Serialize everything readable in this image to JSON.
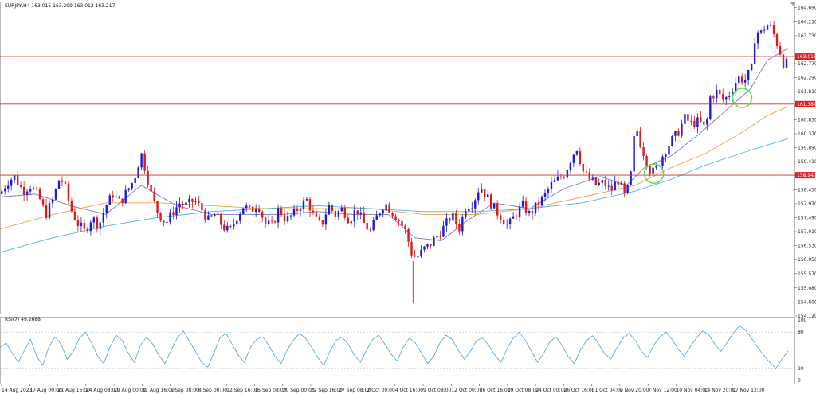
{
  "header": {
    "symbol_info": "EURJPY,H4  163.015 163.299 163.012 163.217"
  },
  "colors": {
    "bull": "#1b1bd8",
    "bear": "#e01818",
    "ma_fast": "#7a7ab8",
    "ma_mid": "#f0a040",
    "ma_slow": "#4ab4e6",
    "hline": "#e02020",
    "rsi_line": "#4a9ee0",
    "circle": "#66dd55"
  },
  "chart_data": [
    {
      "type": "candlestick",
      "title": "EURJPY,H4",
      "ylim": [
        154.2,
        164.9
      ],
      "y_ticks": [
        "164.690",
        "164.210",
        "163.730",
        "162.770",
        "162.290",
        "161.810",
        "161.330",
        "160.850",
        "160.370",
        "159.890",
        "159.410",
        "158.930",
        "158.450",
        "157.970",
        "157.490",
        "157.010",
        "156.530",
        "156.050",
        "155.570",
        "155.080",
        "154.600",
        "154.120"
      ],
      "x_ticks": [
        "14 Aug 2023",
        "17 Aug 00:00",
        "21 Aug 16:00",
        "24 Aug 08:00",
        "29 Aug 00:00",
        "31 Aug 16:00",
        "5 Sep 08:00",
        "8 Sep 00:00",
        "12 Sep 16:00",
        "15 Sep 08:00",
        "20 Sep 00:00",
        "22 Sep 16:00",
        "27 Sep 08:00",
        "2 Oct 00:00",
        "4 Oct 16:00",
        "9 Oct 08:00",
        "12 Oct 00:00",
        "16 Oct 16:00",
        "19 Oct 08:00",
        "24 Oct 00:00",
        "26 Oct 16:00",
        "31 Oct 04:00",
        "2 Nov 20:00",
        "7 Nov 12:00",
        "10 Nov 04:00",
        "14 Nov 20:00",
        "17 Nov 12:00"
      ],
      "close_path": [
        [
          0,
          158.3
        ],
        [
          8,
          158.7
        ],
        [
          16,
          158.9
        ],
        [
          26,
          158.4
        ],
        [
          34,
          158.6
        ],
        [
          44,
          158.2
        ],
        [
          52,
          157.6
        ],
        [
          60,
          158.1
        ],
        [
          68,
          158.9
        ],
        [
          74,
          158.5
        ],
        [
          80,
          157.8
        ],
        [
          88,
          157.3
        ],
        [
          96,
          157.0
        ],
        [
          104,
          157.5
        ],
        [
          112,
          157.2
        ],
        [
          120,
          157.9
        ],
        [
          128,
          158.3
        ],
        [
          136,
          158.0
        ],
        [
          144,
          158.4
        ],
        [
          152,
          158.8
        ],
        [
          160,
          159.7
        ],
        [
          166,
          159.0
        ],
        [
          172,
          158.2
        ],
        [
          180,
          157.6
        ],
        [
          188,
          157.3
        ],
        [
          196,
          157.7
        ],
        [
          204,
          158.0
        ],
        [
          212,
          157.9
        ],
        [
          220,
          158.1
        ],
        [
          228,
          157.8
        ],
        [
          236,
          157.4
        ],
        [
          244,
          157.6
        ],
        [
          252,
          157.2
        ],
        [
          260,
          157.0
        ],
        [
          268,
          157.5
        ],
        [
          276,
          157.9
        ],
        [
          284,
          157.7
        ],
        [
          292,
          158.0
        ],
        [
          300,
          157.3
        ],
        [
          308,
          157.2
        ],
        [
          316,
          157.8
        ],
        [
          324,
          157.4
        ],
        [
          332,
          157.6
        ],
        [
          340,
          157.9
        ],
        [
          348,
          158.1
        ],
        [
          356,
          157.5
        ],
        [
          364,
          157.2
        ],
        [
          372,
          157.9
        ],
        [
          380,
          157.6
        ],
        [
          388,
          157.8
        ],
        [
          396,
          157.4
        ],
        [
          404,
          157.8
        ],
        [
          412,
          157.3
        ],
        [
          420,
          157.0
        ],
        [
          428,
          157.6
        ],
        [
          436,
          158.0
        ],
        [
          444,
          157.7
        ],
        [
          452,
          157.4
        ],
        [
          460,
          157.0
        ],
        [
          466,
          156.3
        ],
        [
          472,
          156.1
        ],
        [
          480,
          156.4
        ],
        [
          488,
          156.6
        ],
        [
          496,
          156.9
        ],
        [
          504,
          157.2
        ],
        [
          512,
          157.6
        ],
        [
          520,
          157.1
        ],
        [
          528,
          157.9
        ],
        [
          536,
          158.0
        ],
        [
          544,
          158.6
        ],
        [
          552,
          158.2
        ],
        [
          560,
          157.8
        ],
        [
          568,
          157.5
        ],
        [
          576,
          157.2
        ],
        [
          584,
          157.6
        ],
        [
          592,
          157.9
        ],
        [
          600,
          157.6
        ],
        [
          608,
          157.9
        ],
        [
          616,
          158.2
        ],
        [
          624,
          158.6
        ],
        [
          632,
          158.8
        ],
        [
          640,
          159.0
        ],
        [
          648,
          159.6
        ],
        [
          654,
          159.9
        ],
        [
          660,
          159.1
        ],
        [
          668,
          158.8
        ],
        [
          676,
          158.6
        ],
        [
          684,
          158.7
        ],
        [
          692,
          158.4
        ],
        [
          700,
          158.8
        ],
        [
          708,
          158.2
        ],
        [
          714,
          158.7
        ],
        [
          720,
          160.7
        ],
        [
          726,
          160.0
        ],
        [
          732,
          159.5
        ],
        [
          738,
          159.0
        ],
        [
          744,
          159.2
        ],
        [
          752,
          159.7
        ],
        [
          760,
          160.1
        ],
        [
          768,
          160.4
        ],
        [
          776,
          160.9
        ],
        [
          784,
          160.7
        ],
        [
          792,
          160.8
        ],
        [
          800,
          160.5
        ],
        [
          804,
          161.6
        ],
        [
          812,
          161.8
        ],
        [
          820,
          161.5
        ],
        [
          828,
          161.8
        ],
        [
          836,
          162.3
        ],
        [
          844,
          162.2
        ],
        [
          852,
          162.6
        ],
        [
          856,
          163.9
        ],
        [
          862,
          163.8
        ],
        [
          868,
          164.1
        ],
        [
          874,
          164.0
        ],
        [
          880,
          163.5
        ],
        [
          886,
          163.0
        ],
        [
          890,
          162.5
        ],
        [
          893,
          163.2
        ]
      ],
      "reference_lines": [
        163.015,
        161.384,
        158.947
      ],
      "reference_labels": [
        "163.015",
        "161.384",
        "158.947"
      ],
      "series": [
        {
          "name": "",
          "kind": "ma_fast",
          "values": [
            [
              0,
              158.2
            ],
            [
              40,
              158.3
            ],
            [
              80,
              157.9
            ],
            [
              120,
              157.6
            ],
            [
              160,
              158.6
            ],
            [
              200,
              157.9
            ],
            [
              240,
              157.6
            ],
            [
              280,
              157.6
            ],
            [
              320,
              157.6
            ],
            [
              360,
              157.7
            ],
            [
              400,
              157.6
            ],
            [
              440,
              157.6
            ],
            [
              470,
              156.8
            ],
            [
              500,
              156.7
            ],
            [
              530,
              157.4
            ],
            [
              560,
              158.0
            ],
            [
              600,
              157.8
            ],
            [
              640,
              158.5
            ],
            [
              680,
              158.9
            ],
            [
              710,
              158.6
            ],
            [
              730,
              159.2
            ],
            [
              760,
              159.6
            ],
            [
              790,
              160.3
            ],
            [
              820,
              161.1
            ],
            [
              850,
              161.9
            ],
            [
              870,
              162.9
            ],
            [
              893,
              163.3
            ]
          ]
        },
        {
          "name": "",
          "kind": "ma_mid",
          "values": [
            [
              0,
              157.1
            ],
            [
              60,
              157.6
            ],
            [
              120,
              158.0
            ],
            [
              180,
              158.0
            ],
            [
              240,
              157.9
            ],
            [
              300,
              157.8
            ],
            [
              360,
              157.8
            ],
            [
              420,
              157.8
            ],
            [
              480,
              157.6
            ],
            [
              540,
              157.6
            ],
            [
              600,
              157.8
            ],
            [
              660,
              158.2
            ],
            [
              720,
              158.6
            ],
            [
              760,
              159.2
            ],
            [
              800,
              159.7
            ],
            [
              840,
              160.4
            ],
            [
              870,
              161.0
            ],
            [
              893,
              161.3
            ]
          ]
        },
        {
          "name": "",
          "kind": "ma_slow",
          "values": [
            [
              0,
              156.3
            ],
            [
              60,
              156.8
            ],
            [
              120,
              157.2
            ],
            [
              180,
              157.5
            ],
            [
              240,
              157.7
            ],
            [
              300,
              157.8
            ],
            [
              360,
              157.9
            ],
            [
              420,
              157.8
            ],
            [
              480,
              157.7
            ],
            [
              540,
              157.7
            ],
            [
              600,
              157.8
            ],
            [
              660,
              158.0
            ],
            [
              720,
              158.4
            ],
            [
              760,
              158.8
            ],
            [
              800,
              159.3
            ],
            [
              840,
              159.7
            ],
            [
              893,
              160.2
            ]
          ]
        }
      ],
      "circles": [
        [
          741,
          159.0
        ],
        [
          841,
          161.6
        ]
      ]
    },
    {
      "type": "line",
      "title": "RSI(7) 49.2688",
      "ylim": [
        0,
        100
      ],
      "y_ticks": [
        "100",
        "80",
        "20",
        "0"
      ],
      "levels": [
        80,
        20
      ],
      "values": [
        55,
        62,
        45,
        30,
        50,
        68,
        40,
        25,
        55,
        72,
        60,
        35,
        48,
        70,
        80,
        62,
        40,
        28,
        55,
        75,
        66,
        45,
        30,
        58,
        72,
        60,
        42,
        28,
        50,
        70,
        82,
        65,
        48,
        30,
        22,
        45,
        70,
        78,
        60,
        42,
        30,
        55,
        68,
        72,
        58,
        40,
        28,
        50,
        66,
        78,
        70,
        55,
        38,
        25,
        48,
        66,
        72,
        60,
        42,
        30,
        50,
        68,
        75,
        60,
        44,
        32,
        55,
        70,
        62,
        45,
        28,
        40,
        62,
        75,
        68,
        50,
        35,
        48,
        66,
        70,
        58,
        42,
        30,
        52,
        70,
        80,
        66,
        48,
        30,
        45,
        64,
        72,
        58,
        40,
        28,
        50,
        66,
        74,
        60,
        44,
        36,
        54,
        70,
        78,
        66,
        48,
        38,
        58,
        72,
        80,
        68,
        52,
        40,
        56,
        70,
        82,
        76,
        60,
        48,
        62,
        78,
        90,
        84,
        70,
        55,
        42,
        30,
        20,
        35,
        49
      ]
    }
  ]
}
